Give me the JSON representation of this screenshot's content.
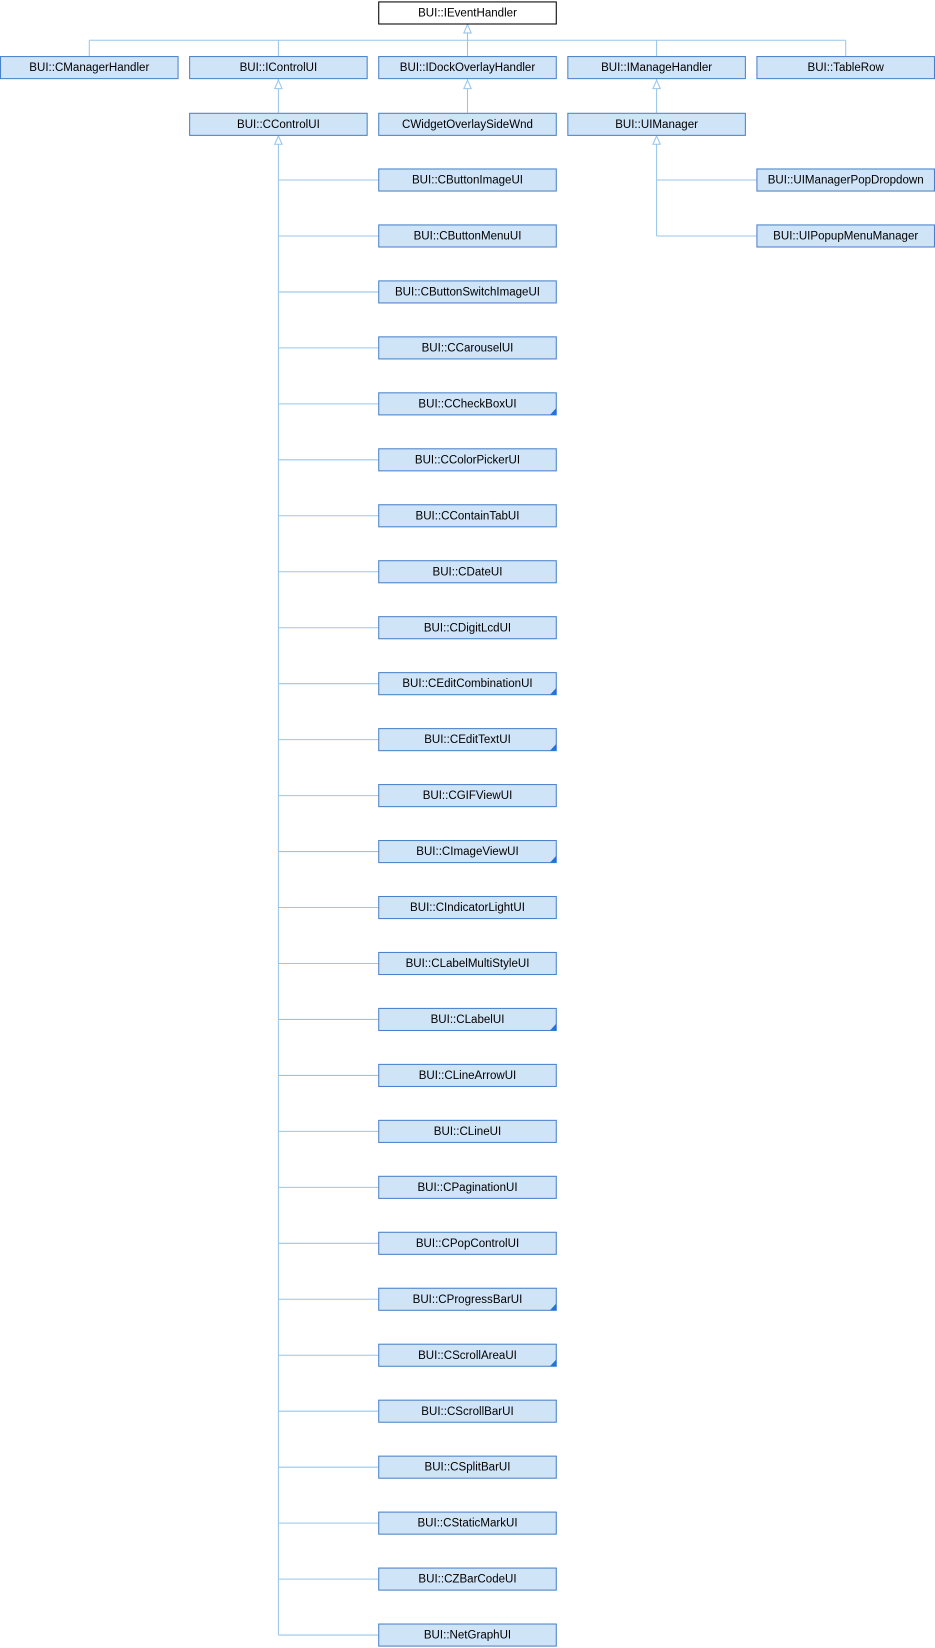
{
  "root": "BUI::IEventHandler",
  "bases": [
    "BUI::CManagerHandler",
    "BUI::IControlUI",
    "BUI::IDockOverlayHandler",
    "BUI::IManageHandler",
    "BUI::TableRow"
  ],
  "derived": [
    "BUI::CControlUI",
    "CWidgetOverlaySideWnd",
    "BUI::UIManager"
  ],
  "controls": [
    {
      "label": "BUI::CButtonImageUI",
      "more": false
    },
    {
      "label": "BUI::CButtonMenuUI",
      "more": false
    },
    {
      "label": "BUI::CButtonSwitchImageUI",
      "more": false
    },
    {
      "label": "BUI::CCarouselUI",
      "more": false
    },
    {
      "label": "BUI::CCheckBoxUI",
      "more": true
    },
    {
      "label": "BUI::CColorPickerUI",
      "more": false
    },
    {
      "label": "BUI::CContainTabUI",
      "more": false
    },
    {
      "label": "BUI::CDateUI",
      "more": false
    },
    {
      "label": "BUI::CDigitLcdUI",
      "more": false
    },
    {
      "label": "BUI::CEditCombinationUI",
      "more": true
    },
    {
      "label": "BUI::CEditTextUI",
      "more": true
    },
    {
      "label": "BUI::CGIFViewUI",
      "more": false
    },
    {
      "label": "BUI::CImageViewUI",
      "more": true
    },
    {
      "label": "BUI::CIndicatorLightUI",
      "more": false
    },
    {
      "label": "BUI::CLabelMultiStyleUI",
      "more": false
    },
    {
      "label": "BUI::CLabelUI",
      "more": true
    },
    {
      "label": "BUI::CLineArrowUI",
      "more": false
    },
    {
      "label": "BUI::CLineUI",
      "more": false
    },
    {
      "label": "BUI::CPaginationUI",
      "more": false
    },
    {
      "label": "BUI::CPopControlUI",
      "more": false
    },
    {
      "label": "BUI::CProgressBarUI",
      "more": true
    },
    {
      "label": "BUI::CScrollAreaUI",
      "more": true
    },
    {
      "label": "BUI::CScrollBarUI",
      "more": false
    },
    {
      "label": "BUI::CSplitBarUI",
      "more": false
    },
    {
      "label": "BUI::CStaticMarkUI",
      "more": false
    },
    {
      "label": "BUI::CZBarCodeUI",
      "more": false
    },
    {
      "label": "BUI::NetGraphUI",
      "more": false
    }
  ],
  "managers": [
    "BUI::UIManagerPopDropdown",
    "BUI::UIPopupMenuManager"
  ]
}
